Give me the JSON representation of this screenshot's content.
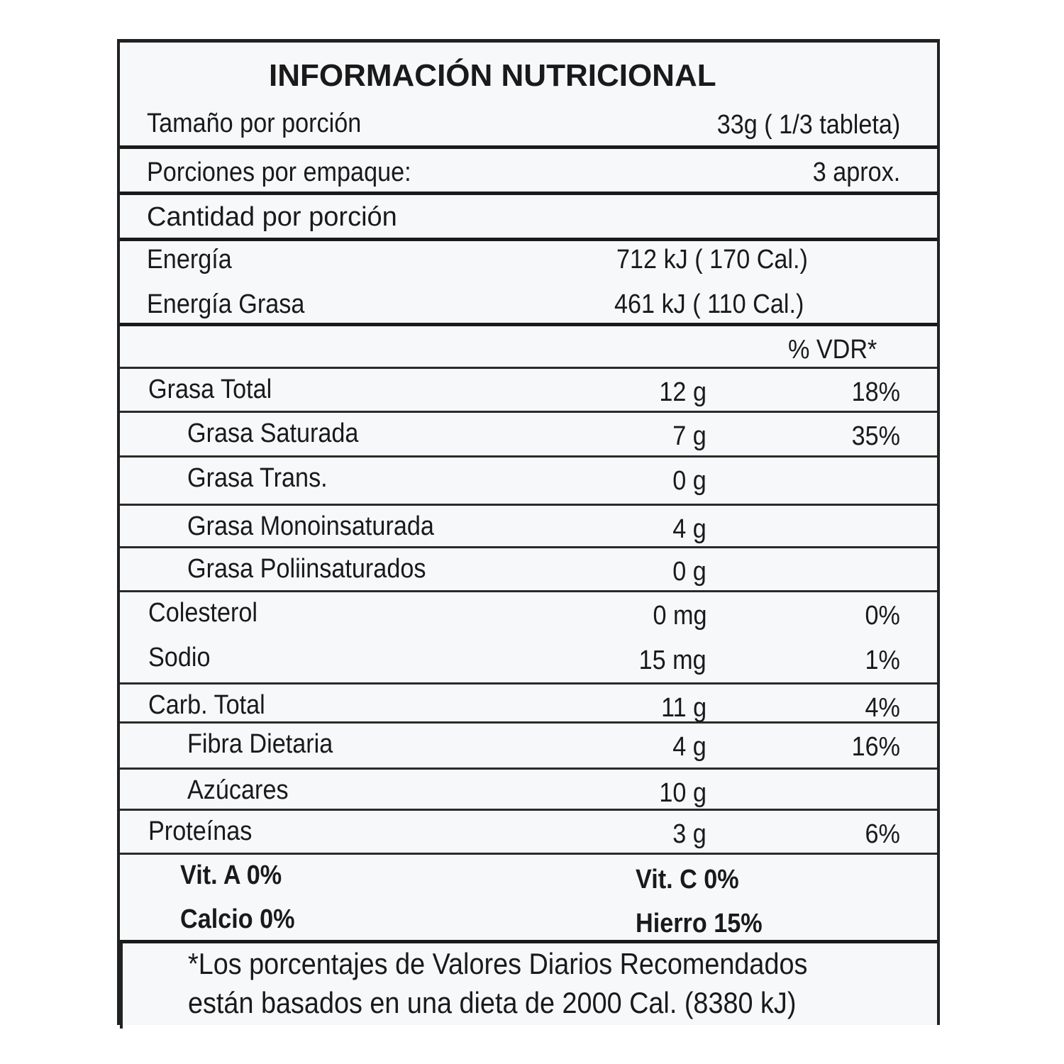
{
  "title": "INFORMACIÓN NUTRICIONAL",
  "serving_size": {
    "label": "Tamaño por porción",
    "value": "33g ( 1/3 tableta)"
  },
  "servings": {
    "label": "Porciones por empaque:",
    "value": "3 aprox."
  },
  "amount_header": "Cantidad por porción",
  "energy": {
    "label": "Energía",
    "value": "712 kJ ( 170 Cal.)"
  },
  "energy_fat": {
    "label": "Energía Grasa",
    "value": "461 kJ ( 110 Cal.)"
  },
  "dv_header": "% VDR*",
  "nutrients": [
    {
      "label": "Grasa Total",
      "amount": "12 g",
      "dv": "18%"
    },
    {
      "label": "Grasa Saturada",
      "amount": "7 g",
      "dv": "35%"
    },
    {
      "label": "Grasa Trans.",
      "amount": "0 g",
      "dv": ""
    },
    {
      "label": "Grasa Monoinsaturada",
      "amount": "4 g",
      "dv": ""
    },
    {
      "label": "Grasa Poliinsaturados",
      "amount": "0 g",
      "dv": ""
    },
    {
      "label": "Colesterol",
      "amount": "0 mg",
      "dv": "0%"
    },
    {
      "label": "Sodio",
      "amount": "15 mg",
      "dv": "1%"
    },
    {
      "label": "Carb. Total",
      "amount": "11 g",
      "dv": "4%"
    },
    {
      "label": "Fibra Dietaria",
      "amount": "4 g",
      "dv": "16%"
    },
    {
      "label": "Azúcares",
      "amount": "10 g",
      "dv": ""
    },
    {
      "label": "Proteínas",
      "amount": "3 g",
      "dv": "6%"
    }
  ],
  "vitamins": {
    "vit_a": "Vit. A 0%",
    "vit_c": "Vit. C 0%",
    "calcio": "Calcio 0%",
    "hierro": "Hierro 15%"
  },
  "footnote": {
    "line1": "*Los porcentajes de Valores Diarios Recomendados",
    "line2": "están basados en una dieta de 2000 Cal.  (8380 kJ)"
  }
}
